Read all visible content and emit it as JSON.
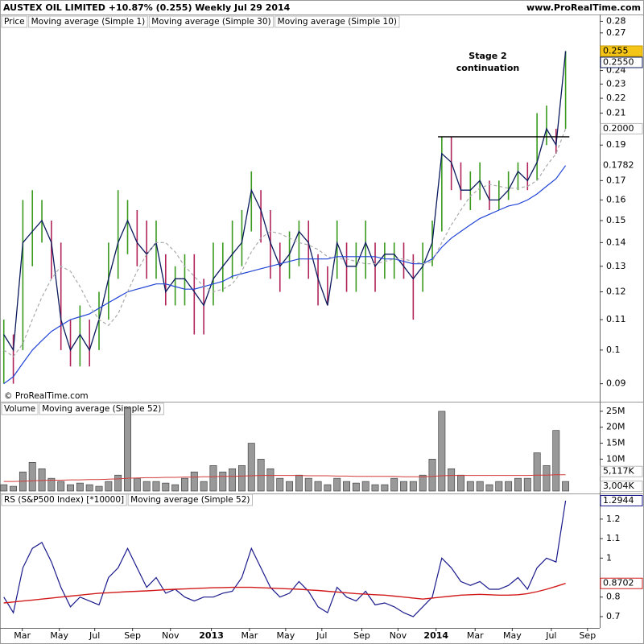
{
  "header": {
    "title": "AUSTEX OIL LIMITED   +10.87% (0.255)   Weekly   Jul 29 2014",
    "site": "www.ProRealTime.com"
  },
  "copyright": "© ProRealTime.com",
  "chart_data": [
    {
      "type": "ohlc",
      "log_scale": true,
      "ylim": [
        0.0855,
        0.286
      ],
      "xlim": [
        -0.4,
        62.5
      ],
      "yticks": [
        0.09,
        0.1,
        0.11,
        0.12,
        0.13,
        0.14,
        0.15,
        0.16,
        0.17,
        0.19,
        0.21,
        0.22,
        0.23,
        0.24,
        0.27,
        0.28
      ],
      "up_color": "#3a9a1e",
      "down_color": "#b0245a",
      "annotation": [
        "Stage 2",
        "continuation"
      ],
      "hline": {
        "value": 0.195,
        "x": [
          45.6,
          59.4
        ]
      },
      "price_label": {
        "value": 0.255,
        "label": "0.255"
      },
      "series": [
        {
          "name": "Price",
          "high": [
            0.11,
            0.105,
            0.16,
            0.165,
            0.16,
            0.15,
            0.14,
            0.11,
            0.115,
            0.11,
            0.12,
            0.14,
            0.165,
            0.16,
            0.155,
            0.15,
            0.15,
            0.135,
            0.13,
            0.135,
            0.135,
            0.125,
            0.14,
            0.14,
            0.15,
            0.155,
            0.175,
            0.165,
            0.155,
            0.14,
            0.145,
            0.15,
            0.15,
            0.135,
            0.13,
            0.15,
            0.14,
            0.14,
            0.15,
            0.14,
            0.14,
            0.14,
            0.14,
            0.135,
            0.14,
            0.15,
            0.195,
            0.195,
            0.18,
            0.175,
            0.18,
            0.17,
            0.17,
            0.175,
            0.18,
            0.18,
            0.21,
            0.215,
            0.2,
            0.255
          ],
          "low": [
            0.09,
            0.09,
            0.1,
            0.13,
            0.14,
            0.125,
            0.1,
            0.095,
            0.095,
            0.095,
            0.1,
            0.11,
            0.125,
            0.135,
            0.13,
            0.125,
            0.125,
            0.115,
            0.115,
            0.115,
            0.105,
            0.105,
            0.115,
            0.12,
            0.125,
            0.13,
            0.145,
            0.14,
            0.125,
            0.12,
            0.125,
            0.13,
            0.125,
            0.115,
            0.115,
            0.125,
            0.12,
            0.12,
            0.125,
            0.12,
            0.125,
            0.125,
            0.125,
            0.11,
            0.12,
            0.13,
            0.145,
            0.165,
            0.16,
            0.155,
            0.16,
            0.155,
            0.155,
            0.16,
            0.165,
            0.165,
            0.17,
            0.19,
            0.185,
            0.2
          ]
        },
        {
          "name": "Moving average (Simple 1)",
          "color": "#0a1a5c",
          "last_label": "0.2550",
          "values": [
            0.105,
            0.1,
            0.14,
            0.145,
            0.15,
            0.14,
            0.11,
            0.1,
            0.105,
            0.1,
            0.11,
            0.125,
            0.14,
            0.15,
            0.14,
            0.135,
            0.14,
            0.12,
            0.125,
            0.125,
            0.12,
            0.115,
            0.125,
            0.13,
            0.135,
            0.14,
            0.165,
            0.155,
            0.14,
            0.13,
            0.135,
            0.145,
            0.14,
            0.125,
            0.115,
            0.14,
            0.13,
            0.13,
            0.14,
            0.13,
            0.135,
            0.135,
            0.13,
            0.125,
            0.13,
            0.14,
            0.185,
            0.18,
            0.165,
            0.165,
            0.17,
            0.16,
            0.16,
            0.165,
            0.175,
            0.17,
            0.18,
            0.2,
            0.19,
            0.255
          ]
        },
        {
          "name": "Moving average (Simple 30)",
          "color": "#2144d6",
          "last_label": "0.1782",
          "values": [
            0.09,
            0.092,
            0.096,
            0.1,
            0.103,
            0.106,
            0.108,
            0.11,
            0.111,
            0.112,
            0.114,
            0.116,
            0.118,
            0.12,
            0.121,
            0.122,
            0.123,
            0.123,
            0.122,
            0.121,
            0.121,
            0.122,
            0.123,
            0.124,
            0.126,
            0.127,
            0.128,
            0.129,
            0.13,
            0.131,
            0.132,
            0.133,
            0.133,
            0.133,
            0.133,
            0.134,
            0.134,
            0.134,
            0.134,
            0.134,
            0.133,
            0.133,
            0.132,
            0.131,
            0.131,
            0.133,
            0.138,
            0.142,
            0.145,
            0.148,
            0.151,
            0.153,
            0.155,
            0.157,
            0.158,
            0.16,
            0.163,
            0.167,
            0.171,
            0.1782
          ]
        },
        {
          "name": "Moving average (Simple 10)",
          "color": "#aaaaaa",
          "dash": true,
          "last_label": "0.2000",
          "values": [
            0.1,
            0.098,
            0.102,
            0.11,
            0.118,
            0.125,
            0.13,
            0.128,
            0.122,
            0.115,
            0.11,
            0.108,
            0.112,
            0.12,
            0.128,
            0.135,
            0.14,
            0.14,
            0.136,
            0.13,
            0.126,
            0.122,
            0.12,
            0.121,
            0.123,
            0.128,
            0.136,
            0.142,
            0.145,
            0.144,
            0.142,
            0.14,
            0.139,
            0.137,
            0.134,
            0.133,
            0.133,
            0.132,
            0.131,
            0.131,
            0.132,
            0.133,
            0.133,
            0.132,
            0.131,
            0.132,
            0.14,
            0.148,
            0.155,
            0.162,
            0.166,
            0.168,
            0.167,
            0.166,
            0.166,
            0.167,
            0.17,
            0.178,
            0.185,
            0.2
          ]
        }
      ]
    },
    {
      "type": "volume",
      "ylim": [
        0,
        27
      ],
      "xlim": [
        -0.4,
        62.5
      ],
      "yticks": [
        {
          "value": 10,
          "label": "10M"
        },
        {
          "value": 15,
          "label": "15M"
        },
        {
          "value": 20,
          "label": "20M"
        },
        {
          "value": 25,
          "label": "25M"
        }
      ],
      "series": [
        {
          "name": "Volume",
          "color": "#999999",
          "last_label": "3,004K",
          "values": [
            2,
            1.5,
            6,
            9,
            7,
            4,
            3,
            2,
            2.5,
            2,
            1.5,
            3,
            5,
            26,
            4,
            3,
            3,
            2.5,
            2,
            4,
            6,
            3,
            8,
            6,
            7,
            8,
            15,
            10,
            7,
            4,
            3,
            5,
            4,
            3,
            2,
            4,
            3,
            2.5,
            3,
            2,
            2,
            4,
            3,
            3,
            5,
            10,
            25,
            7,
            5,
            3,
            3,
            2,
            3,
            3,
            4,
            4,
            12,
            8,
            19,
            3.004
          ]
        },
        {
          "name": "Moving average (Simple 52)",
          "color": "#d23a3a",
          "last_label": "5,117K",
          "values": [
            3,
            3,
            3.1,
            3.2,
            3.3,
            3.4,
            3.4,
            3.5,
            3.5,
            3.6,
            3.6,
            3.7,
            3.8,
            4,
            4.1,
            4.2,
            4.2,
            4.3,
            4.3,
            4.4,
            4.4,
            4.5,
            4.5,
            4.6,
            4.6,
            4.7,
            4.8,
            4.9,
            4.9,
            4.9,
            4.9,
            4.9,
            4.8,
            4.8,
            4.8,
            4.7,
            4.7,
            4.6,
            4.6,
            4.6,
            4.6,
            4.6,
            4.5,
            4.5,
            4.5,
            4.6,
            4.8,
            4.9,
            4.9,
            4.9,
            4.9,
            4.9,
            4.9,
            4.9,
            4.9,
            4.9,
            5,
            5,
            5.1,
            5.117
          ]
        }
      ]
    },
    {
      "type": "line",
      "ylim": [
        0.642,
        1.315
      ],
      "xlim": [
        -0.4,
        62.5
      ],
      "yticks": [
        0.7,
        0.8,
        1,
        1.1,
        1.2
      ],
      "xticks": [
        {
          "value": 1.94,
          "label": "Mar"
        },
        {
          "value": 5.83,
          "label": "May"
        },
        {
          "value": 9.55,
          "label": "Jul"
        },
        {
          "value": 13.52,
          "label": "Sep"
        },
        {
          "value": 17.5,
          "label": "Nov"
        },
        {
          "value": 21.8,
          "label": "2013"
        },
        {
          "value": 25.8,
          "label": "Mar"
        },
        {
          "value": 29.6,
          "label": "May"
        },
        {
          "value": 33.4,
          "label": "Jul"
        },
        {
          "value": 37.6,
          "label": "Sep"
        },
        {
          "value": 41.4,
          "label": "Nov"
        },
        {
          "value": 45.4,
          "label": "2014"
        },
        {
          "value": 49.5,
          "label": "Mar"
        },
        {
          "value": 53.4,
          "label": "May"
        },
        {
          "value": 57.5,
          "label": "Jul"
        },
        {
          "value": 61.3,
          "label": "Sep"
        }
      ],
      "series": [
        {
          "name": "RS (S&P500 Index) [*10000]",
          "color": "#1a1a8c",
          "last_label": "1.2944",
          "values": [
            0.8,
            0.72,
            0.95,
            1.05,
            1.08,
            0.98,
            0.85,
            0.75,
            0.8,
            0.78,
            0.76,
            0.9,
            0.95,
            1.05,
            0.95,
            0.85,
            0.9,
            0.82,
            0.84,
            0.8,
            0.78,
            0.8,
            0.8,
            0.82,
            0.83,
            0.9,
            1.05,
            0.95,
            0.85,
            0.8,
            0.82,
            0.88,
            0.83,
            0.75,
            0.72,
            0.85,
            0.8,
            0.78,
            0.83,
            0.76,
            0.77,
            0.75,
            0.72,
            0.7,
            0.75,
            0.8,
            1.0,
            0.95,
            0.88,
            0.86,
            0.88,
            0.84,
            0.84,
            0.86,
            0.9,
            0.84,
            0.95,
            1.0,
            0.98,
            1.2944
          ]
        },
        {
          "name": "Moving average (Simple 52)",
          "color": "#d21a1a",
          "last_label": "0.8702",
          "values": [
            0.77,
            0.775,
            0.78,
            0.785,
            0.79,
            0.795,
            0.8,
            0.805,
            0.81,
            0.815,
            0.82,
            0.822,
            0.825,
            0.828,
            0.83,
            0.832,
            0.835,
            0.838,
            0.84,
            0.842,
            0.844,
            0.846,
            0.848,
            0.849,
            0.85,
            0.85,
            0.85,
            0.848,
            0.846,
            0.844,
            0.842,
            0.84,
            0.837,
            0.834,
            0.83,
            0.826,
            0.822,
            0.818,
            0.815,
            0.812,
            0.81,
            0.805,
            0.8,
            0.795,
            0.79,
            0.795,
            0.8,
            0.805,
            0.81,
            0.812,
            0.814,
            0.812,
            0.81,
            0.81,
            0.812,
            0.818,
            0.828,
            0.84,
            0.855,
            0.8702
          ]
        }
      ]
    }
  ]
}
